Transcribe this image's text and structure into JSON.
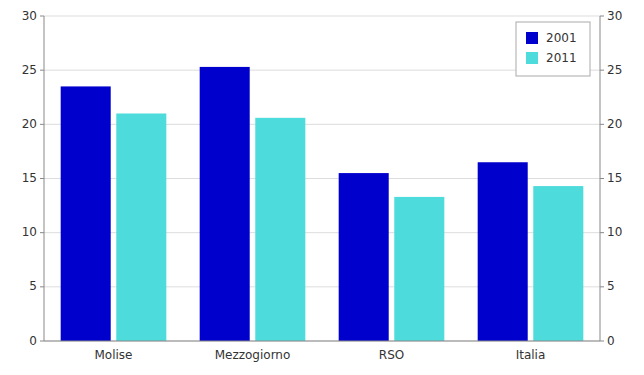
{
  "chart_data": {
    "type": "bar",
    "categories": [
      "Molise",
      "Mezzogiorno",
      "RSO",
      "Italia"
    ],
    "series": [
      {
        "name": "2001",
        "color": "#0000CC",
        "values": [
          23.5,
          25.3,
          15.5,
          16.5
        ]
      },
      {
        "name": "2011",
        "color": "#4DDBDB",
        "values": [
          21.0,
          20.6,
          13.3,
          14.3
        ]
      }
    ],
    "ylim": [
      0,
      30
    ],
    "yticks": [
      0,
      5,
      10,
      15,
      20,
      25,
      30
    ],
    "y2lim": [
      0,
      30
    ],
    "y2ticks": [
      0,
      5,
      10,
      15,
      20,
      25,
      30
    ],
    "grid": true,
    "legend": "upper right"
  }
}
